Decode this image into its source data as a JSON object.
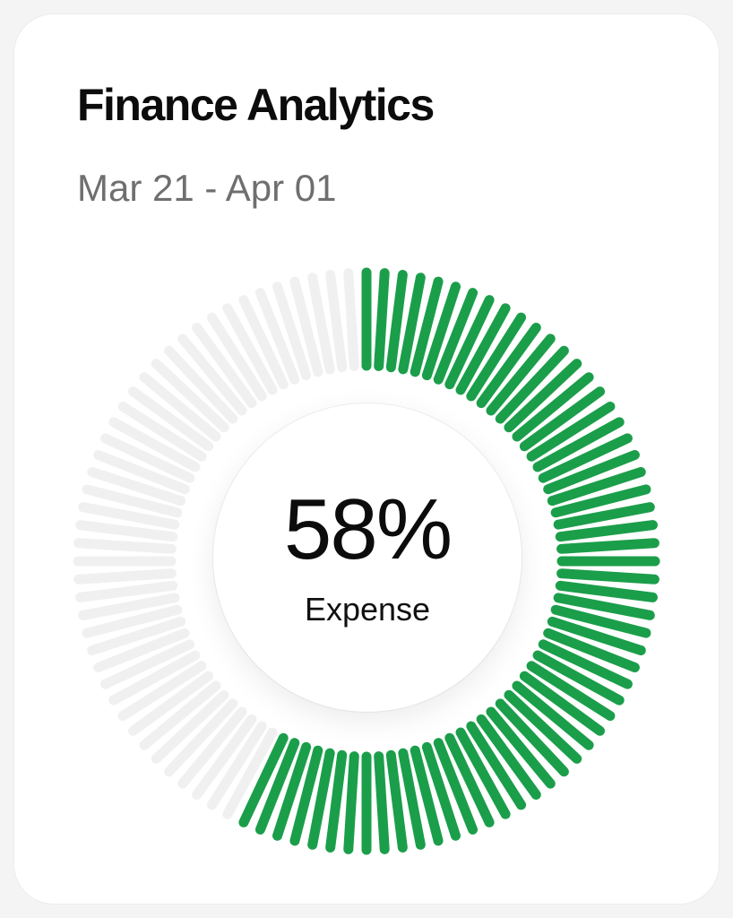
{
  "card": {
    "title": "Finance Analytics",
    "date_range": "Mar 21 - Apr 01"
  },
  "gauge": {
    "value_text": "58%",
    "label": "Expense",
    "progress": 0.58,
    "active_color": "#1b9e4a",
    "inactive_color": "#f0f0f0"
  }
}
